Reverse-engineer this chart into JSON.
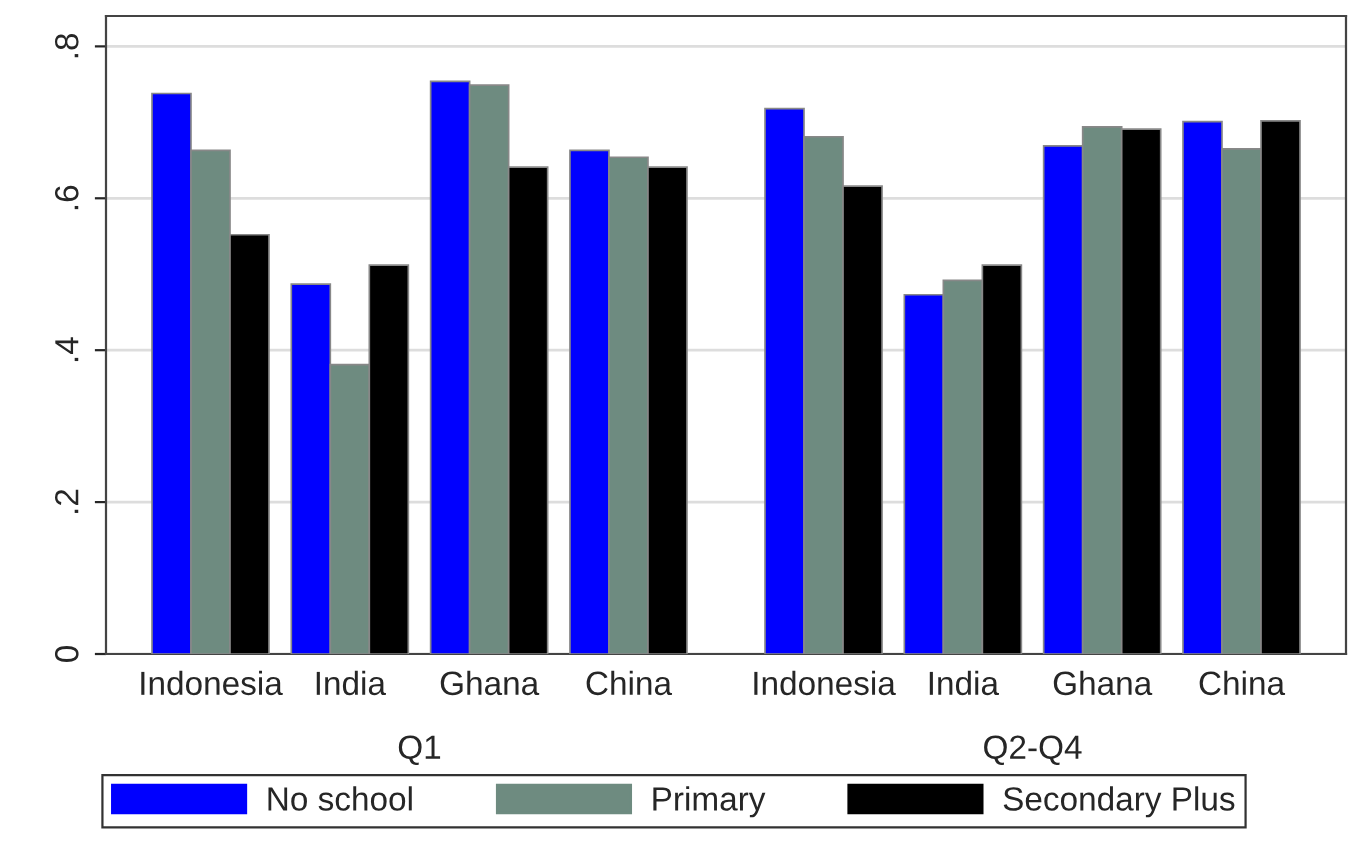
{
  "chart_data": {
    "type": "bar",
    "categories": [
      "Indonesia",
      "India",
      "Ghana",
      "China",
      "Indonesia",
      "India",
      "Ghana",
      "China"
    ],
    "series": [
      {
        "name": "No school",
        "color": "#0000ff",
        "values": [
          0.738,
          0.487,
          0.754,
          0.663,
          0.718,
          0.473,
          0.669,
          0.701
        ]
      },
      {
        "name": "Primary",
        "color": "#6e8b80",
        "values": [
          0.663,
          0.381,
          0.749,
          0.654,
          0.681,
          0.492,
          0.694,
          0.665
        ]
      },
      {
        "name": "Secondary Plus",
        "color": "#000000",
        "values": [
          0.552,
          0.512,
          0.641,
          0.641,
          0.616,
          0.512,
          0.691,
          0.702
        ]
      }
    ],
    "annotations": [
      "Q1",
      "Q2-Q4"
    ],
    "ylim": [
      0,
      0.84
    ],
    "yticks": [
      0,
      {
        "value": 0.2,
        "label": ".2"
      },
      {
        "value": 0.4,
        "label": ".4"
      },
      {
        "value": 0.6,
        "label": ".6"
      },
      {
        "value": 0.8,
        "label": ".8"
      }
    ],
    "grid": "y",
    "legend": "bottom"
  }
}
